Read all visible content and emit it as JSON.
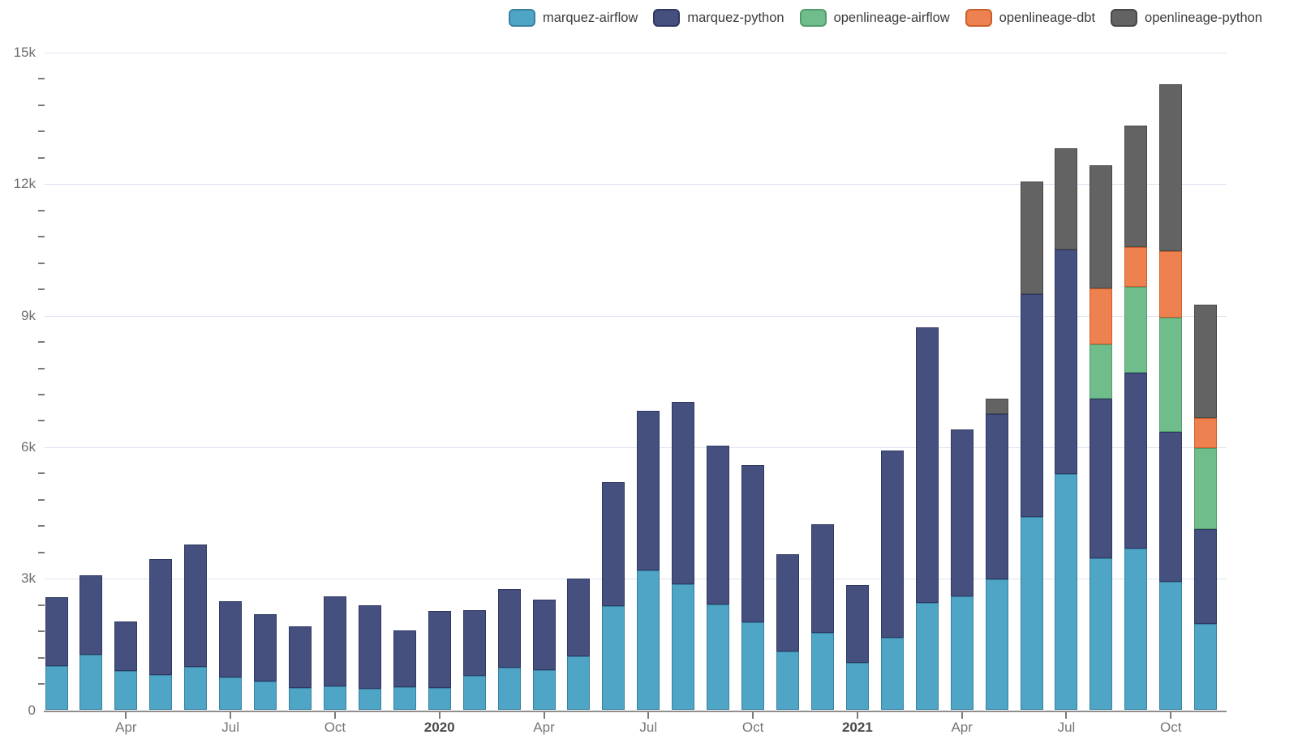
{
  "chart_data": {
    "type": "bar",
    "stacked": true,
    "title": "",
    "xlabel": "",
    "ylabel": "",
    "ylim": [
      0,
      15000
    ],
    "grid": "horizontal",
    "legend_position": "top-right",
    "minor_tick_step": 600,
    "x": [
      "Feb 2019",
      "Mar 2019",
      "Apr 2019",
      "May 2019",
      "Jun 2019",
      "Jul 2019",
      "Aug 2019",
      "Sep 2019",
      "Oct 2019",
      "Nov 2019",
      "Dec 2019",
      "Jan 2020",
      "Feb 2020",
      "Mar 2020",
      "Apr 2020",
      "May 2020",
      "Jun 2020",
      "Jul 2020",
      "Aug 2020",
      "Sep 2020",
      "Oct 2020",
      "Nov 2020",
      "Dec 2020",
      "Jan 2021",
      "Feb 2021",
      "Mar 2021",
      "Apr 2021",
      "May 2021",
      "Jun 2021",
      "Jul 2021",
      "Aug 2021",
      "Sep 2021",
      "Oct 2021",
      "Nov 2021"
    ],
    "series": [
      {
        "name": "marquez-airflow",
        "color": "#4ea5c5",
        "line_color": "#3a80a0",
        "values": [
          1000,
          1260,
          890,
          810,
          990,
          740,
          660,
          510,
          550,
          490,
          520,
          510,
          780,
          970,
          910,
          1220,
          2370,
          3190,
          2870,
          2420,
          2000,
          1340,
          1770,
          1080,
          1650,
          2440,
          2600,
          2990,
          4410,
          5390,
          3470,
          3680,
          2930,
          1970
        ]
      },
      {
        "name": "marquez-python",
        "color": "#46507e",
        "line_color": "#2f3862",
        "values": [
          1580,
          1820,
          1130,
          2630,
          2790,
          1740,
          1530,
          1410,
          2050,
          1900,
          1300,
          1760,
          1510,
          1790,
          1620,
          1780,
          2840,
          3640,
          4160,
          3620,
          3590,
          2220,
          2470,
          1770,
          4280,
          6300,
          3810,
          3770,
          5090,
          5120,
          3630,
          4010,
          3420,
          2160
        ]
      },
      {
        "name": "openlineage-airflow",
        "color": "#6fbd8b",
        "line_color": "#529c6c",
        "values": [
          0,
          0,
          0,
          0,
          0,
          0,
          0,
          0,
          0,
          0,
          0,
          0,
          0,
          0,
          0,
          0,
          0,
          0,
          0,
          0,
          0,
          0,
          0,
          0,
          0,
          0,
          0,
          0,
          0,
          0,
          1240,
          1960,
          2600,
          1850
        ]
      },
      {
        "name": "openlineage-dbt",
        "color": "#ee8150",
        "line_color": "#cc5f2c",
        "values": [
          0,
          0,
          0,
          0,
          0,
          0,
          0,
          0,
          0,
          0,
          0,
          0,
          0,
          0,
          0,
          0,
          0,
          0,
          0,
          0,
          0,
          0,
          0,
          0,
          0,
          0,
          0,
          0,
          0,
          0,
          1290,
          920,
          1530,
          690
        ]
      },
      {
        "name": "openlineage-python",
        "color": "#636363",
        "line_color": "#474747",
        "values": [
          0,
          0,
          0,
          0,
          0,
          0,
          0,
          0,
          0,
          0,
          0,
          0,
          0,
          0,
          0,
          0,
          0,
          0,
          0,
          0,
          0,
          0,
          0,
          0,
          0,
          0,
          0,
          350,
          2560,
          2310,
          2800,
          2760,
          3800,
          2590
        ]
      }
    ],
    "yticks": [
      {
        "value": 0,
        "label": "0"
      },
      {
        "value": 3000,
        "label": "3k"
      },
      {
        "value": 6000,
        "label": "6k"
      },
      {
        "value": 9000,
        "label": "9k"
      },
      {
        "value": 12000,
        "label": "12k"
      },
      {
        "value": 15000,
        "label": "15k"
      }
    ],
    "xticks": [
      {
        "index": 2,
        "label": "Apr",
        "bold": false
      },
      {
        "index": 5,
        "label": "Jul",
        "bold": false
      },
      {
        "index": 8,
        "label": "Oct",
        "bold": false
      },
      {
        "index": 11,
        "label": "2020",
        "bold": true
      },
      {
        "index": 14,
        "label": "Apr",
        "bold": false
      },
      {
        "index": 17,
        "label": "Jul",
        "bold": false
      },
      {
        "index": 20,
        "label": "Oct",
        "bold": false
      },
      {
        "index": 23,
        "label": "2021",
        "bold": true
      },
      {
        "index": 26,
        "label": "Apr",
        "bold": false
      },
      {
        "index": 29,
        "label": "Jul",
        "bold": false
      },
      {
        "index": 32,
        "label": "Oct",
        "bold": false
      }
    ]
  }
}
